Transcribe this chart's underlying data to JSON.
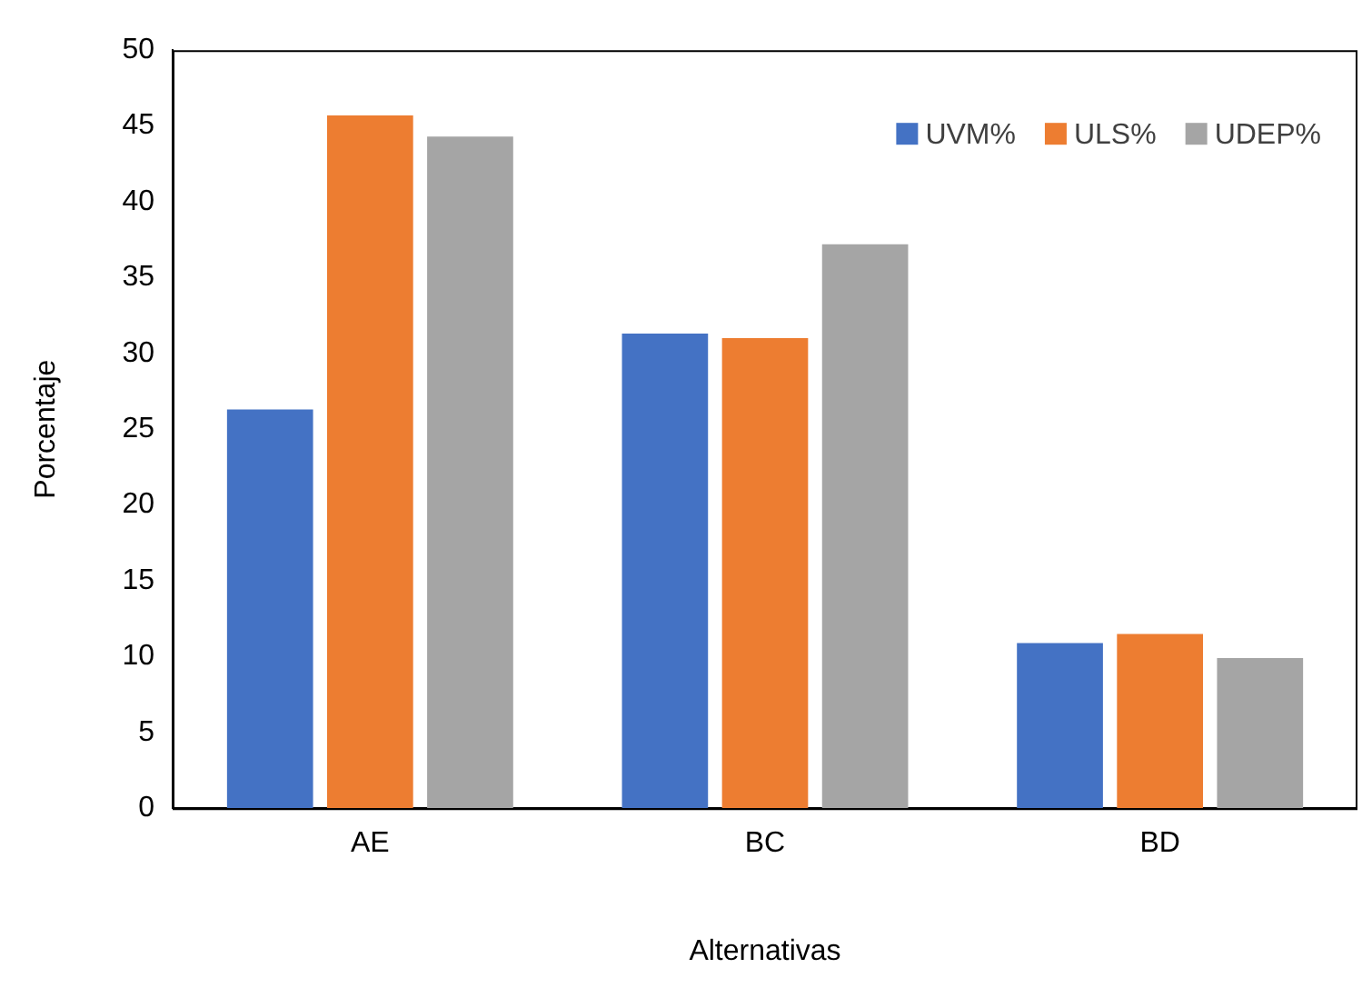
{
  "chart_data": {
    "type": "bar",
    "xlabel": "Alternativas",
    "ylabel": "Porcentaje",
    "categories": [
      "AE",
      "BC",
      "BD"
    ],
    "series": [
      {
        "name": "UVM%",
        "color": "#4472c4",
        "values": [
          26.3,
          31.3,
          10.9
        ]
      },
      {
        "name": "ULS%",
        "color": "#ed7d31",
        "values": [
          45.7,
          31.0,
          11.5
        ]
      },
      {
        "name": "UDEP%",
        "color": "#a5a5a5",
        "values": [
          44.3,
          37.2,
          9.9
        ]
      }
    ],
    "ylim": [
      0,
      50
    ],
    "yticks": [
      0,
      5,
      10,
      15,
      20,
      25,
      30,
      35,
      40,
      45,
      50
    ],
    "grid": false,
    "legend": "top right"
  }
}
